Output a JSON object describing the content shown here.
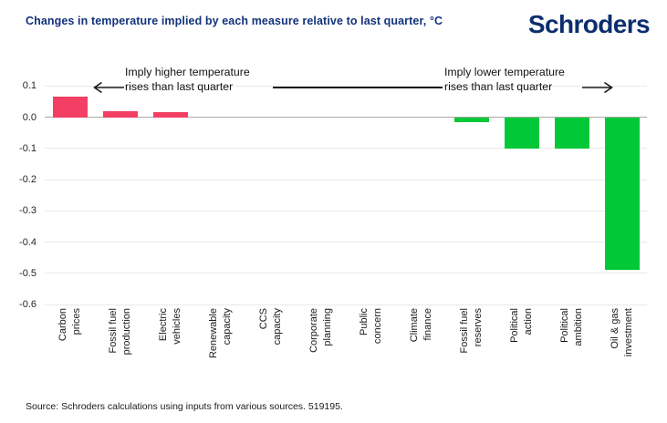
{
  "header": {
    "title": "Changes in temperature implied by each measure relative to last quarter, °C",
    "logo": "Schroders"
  },
  "annotations": {
    "left": {
      "line1": "Imply higher temperature",
      "line2": "rises than last quarter"
    },
    "right": {
      "line1": "Imply lower temperature",
      "line2": "rises than last quarter"
    }
  },
  "source": "Source: Schroders calculations using inputs from various sources. 519195.",
  "chart_data": {
    "type": "bar",
    "title": "Changes in temperature implied by each measure relative to last quarter, °C",
    "categories": [
      "Carbon\nprices",
      "Fossil fuel\nproduction",
      "Electric\nvehicles",
      "Renewable\ncapacity",
      "CCS\ncapacity",
      "Corporate\nplanning",
      "Public\nconcern",
      "Climate\nfinance",
      "Fossil fuel\nreserves",
      "Political\naction",
      "Political\nambition",
      "Oil & gas\ninvestment"
    ],
    "values": [
      0.065,
      0.02,
      0.015,
      0,
      0,
      0,
      0,
      0,
      -0.015,
      -0.1,
      -0.1,
      -0.49
    ],
    "colors": {
      "positive": "#f23f63",
      "negative": "#00c837"
    },
    "yticks": [
      0.1,
      0.0,
      -0.1,
      -0.2,
      -0.3,
      -0.4,
      -0.5,
      -0.6
    ],
    "ylim": [
      -0.6,
      0.13
    ],
    "xlabel": "",
    "ylabel": "",
    "grid": true,
    "legend": false
  }
}
